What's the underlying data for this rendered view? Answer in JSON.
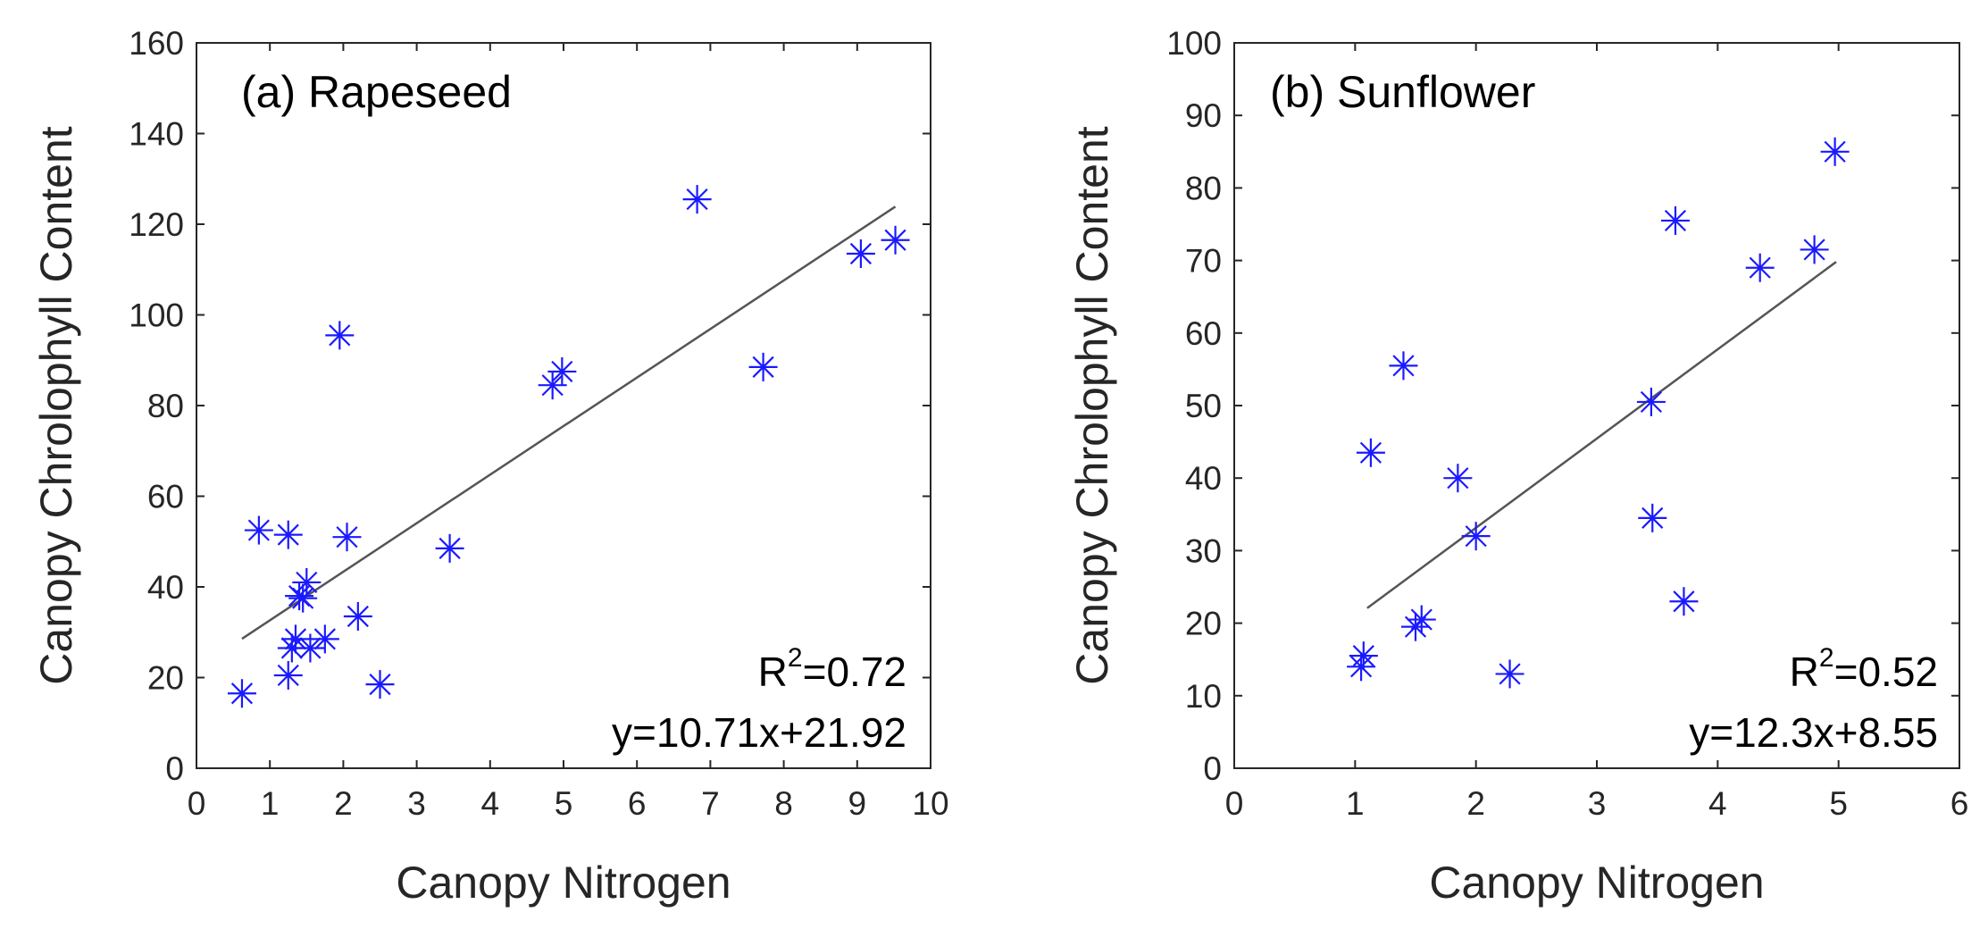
{
  "colors": {
    "marker": "#1a1aff",
    "fit_line": "#555555",
    "axis": "#262626",
    "background": "#ffffff"
  },
  "chart_data": [
    {
      "type": "scatter",
      "title": "(a) Rapeseed",
      "xlabel": "Canopy Nitrogen",
      "ylabel": "Canopy Chrolophyll Content",
      "xlim": [
        0,
        10
      ],
      "ylim": [
        0,
        160
      ],
      "xticks": [
        0,
        1,
        2,
        3,
        4,
        5,
        6,
        7,
        8,
        9,
        10
      ],
      "yticks": [
        0,
        20,
        40,
        60,
        80,
        100,
        120,
        140,
        160
      ],
      "marker": "asterisk",
      "grid": false,
      "points": [
        [
          0.62,
          16.5
        ],
        [
          0.85,
          52.5
        ],
        [
          1.25,
          51.5
        ],
        [
          1.25,
          20.5
        ],
        [
          1.3,
          26.5
        ],
        [
          1.35,
          28.5
        ],
        [
          1.4,
          38
        ],
        [
          1.45,
          37.5
        ],
        [
          1.5,
          41
        ],
        [
          1.55,
          26.5
        ],
        [
          1.75,
          28.5
        ],
        [
          1.95,
          95.5
        ],
        [
          2.05,
          51
        ],
        [
          2.2,
          33.5
        ],
        [
          2.5,
          18.5
        ],
        [
          3.45,
          48.5
        ],
        [
          4.85,
          84.5
        ],
        [
          4.98,
          87.5
        ],
        [
          6.82,
          125.5
        ],
        [
          7.72,
          88.5
        ],
        [
          9.05,
          113.5
        ],
        [
          9.52,
          116.5
        ]
      ],
      "fit": {
        "slope": 10.71,
        "intercept": 21.92,
        "x_range": [
          0.62,
          9.52
        ]
      },
      "r2_label": "R",
      "r2_sup": "2",
      "r2_value": "=0.72",
      "equation": "y=10.71x+21.92"
    },
    {
      "type": "scatter",
      "title": "(b) Sunflower",
      "xlabel": "Canopy Nitrogen",
      "ylabel": "Canopy Chrolophyll Content",
      "xlim": [
        0,
        6
      ],
      "ylim": [
        0,
        100
      ],
      "xticks": [
        0,
        1,
        2,
        3,
        4,
        5,
        6
      ],
      "yticks": [
        0,
        10,
        20,
        30,
        40,
        50,
        60,
        70,
        80,
        90,
        100
      ],
      "marker": "asterisk",
      "grid": false,
      "points": [
        [
          1.05,
          14
        ],
        [
          1.07,
          15.5
        ],
        [
          1.13,
          43.5
        ],
        [
          1.4,
          55.5
        ],
        [
          1.5,
          19.5
        ],
        [
          1.55,
          20.5
        ],
        [
          1.85,
          40
        ],
        [
          2.0,
          32
        ],
        [
          2.28,
          13
        ],
        [
          3.45,
          50.5
        ],
        [
          3.46,
          34.5
        ],
        [
          3.65,
          75.5
        ],
        [
          3.72,
          23
        ],
        [
          4.35,
          69
        ],
        [
          4.8,
          71.5
        ],
        [
          4.97,
          85
        ]
      ],
      "fit": {
        "slope": 12.3,
        "intercept": 8.55,
        "x_range": [
          1.1,
          4.98
        ]
      },
      "r2_label": "R",
      "r2_sup": "2",
      "r2_value": "=0.52",
      "equation": "y=12.3x+8.55"
    }
  ]
}
